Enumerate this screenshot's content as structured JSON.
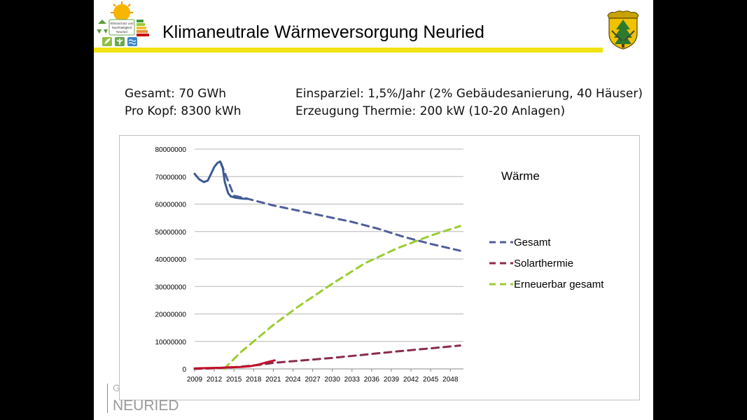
{
  "header": {
    "title": "Klimaneutrale Wärmeversorgung Neuried",
    "logo_text": "Klimaschutz und Nachhaltigkeit Neuried"
  },
  "info": {
    "gesamt": "Gesamt: 70 GWh",
    "pro_kopf": "Pro Kopf:  8300 kWh",
    "einsparziel": "Einsparziel: 1,5%/Jahr  (2% Gebäudesanierung, 40 Häuser)",
    "erzeugung": "Erzeugung Thermie:  200 kW (10-20 Anlagen)"
  },
  "footer": {
    "word": "NEURIED",
    "g": "G"
  },
  "colors": {
    "gesamt": "#4f5e99",
    "solar": "#8b2a4e",
    "erneuerbar": "#9acd32",
    "actual_gesamt": "#3a5a93",
    "actual_solar": "#c0122a",
    "rule": "#f1e211"
  },
  "chart_data": {
    "type": "line",
    "title": "Wärme",
    "xlabel": "",
    "ylabel": "",
    "ylim": [
      0,
      80000000
    ],
    "xlim": [
      2009,
      2050
    ],
    "yticks": [
      "0",
      "10000000",
      "20000000",
      "30000000",
      "40000000",
      "50000000",
      "60000000",
      "70000000",
      "80000000"
    ],
    "xticks": [
      "2009",
      "2012",
      "2015",
      "2018",
      "2021",
      "2024",
      "2027",
      "2030",
      "2033",
      "2036",
      "2039",
      "2042",
      "2045",
      "2048"
    ],
    "grid": true,
    "legend_position": "right",
    "series": [
      {
        "name": "Gesamt",
        "style": "dashed",
        "x": [
          2013,
          2015,
          2017,
          2021,
          2025,
          2029,
          2033,
          2037,
          2041,
          2045,
          2049.5
        ],
        "values": [
          75000000,
          63000000,
          62000000,
          59500000,
          57500000,
          55500000,
          53500000,
          51000000,
          48000000,
          45500000,
          43000000
        ]
      },
      {
        "name": "Solarthermie",
        "style": "dashed",
        "x": [
          2009,
          2013,
          2016,
          2019,
          2021,
          2025,
          2030,
          2035,
          2040,
          2045,
          2049.5
        ],
        "values": [
          0,
          300000,
          800000,
          1500000,
          2200000,
          3000000,
          4000000,
          5200000,
          6400000,
          7500000,
          8500000
        ]
      },
      {
        "name": "Erneuerbar gesamt",
        "style": "dashed",
        "x": [
          2013.5,
          2016,
          2019,
          2021,
          2025,
          2030,
          2035,
          2040,
          2045,
          2049.5
        ],
        "values": [
          0,
          6000000,
          12000000,
          16000000,
          23000000,
          31000000,
          38500000,
          44000000,
          48500000,
          52000000
        ]
      },
      {
        "style": "solid",
        "x": [
          2009,
          2009.7,
          2010.4,
          2011,
          2011.6,
          2012,
          2012.5,
          2012.9,
          2013.3,
          2013.6,
          2014.1,
          2014.5,
          2015.3,
          2016.3,
          2017
        ],
        "values": [
          71000000,
          69000000,
          68000000,
          68500000,
          71500000,
          73500000,
          75000000,
          75500000,
          73000000,
          68000000,
          64000000,
          62800000,
          62300000,
          62000000,
          61900000
        ]
      },
      {
        "style": "solid",
        "x": [
          2009,
          2011,
          2013,
          2014.5,
          2016,
          2017.5,
          2018.8,
          2020,
          2021.2
        ],
        "values": [
          200000,
          300000,
          400000,
          600000,
          700000,
          1000000,
          1600000,
          2400000,
          3100000
        ]
      }
    ]
  }
}
